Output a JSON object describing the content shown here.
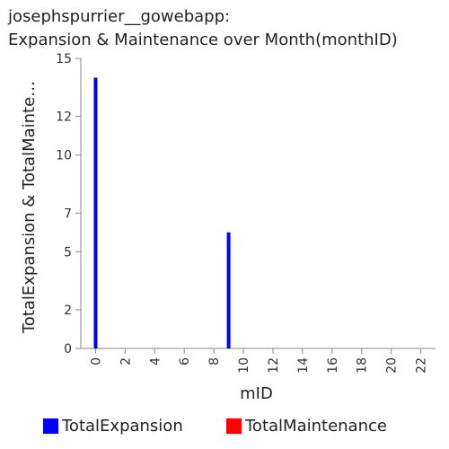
{
  "chart_data": {
    "type": "bar",
    "title_line1": "josephspurrier__gowebapp:",
    "title_line2": "Expansion & Maintenance over Month(monthID)",
    "xlabel": "mID",
    "ylabel": "TotalExpansion & TotalMainte…",
    "xlim": [
      -1,
      23
    ],
    "ylim": [
      0,
      15
    ],
    "xticks": [
      0,
      2,
      4,
      6,
      8,
      10,
      12,
      14,
      16,
      18,
      20,
      22
    ],
    "yticks": [
      0,
      2,
      5,
      7,
      10,
      12,
      15
    ],
    "grid": false,
    "legend_position": "bottom",
    "series": [
      {
        "name": "TotalExpansion",
        "color": "#0000ff",
        "points": [
          {
            "x": 0,
            "y": 14
          },
          {
            "x": 9,
            "y": 6
          }
        ]
      },
      {
        "name": "TotalMaintenance",
        "color": "#ff0000",
        "points": []
      }
    ]
  }
}
